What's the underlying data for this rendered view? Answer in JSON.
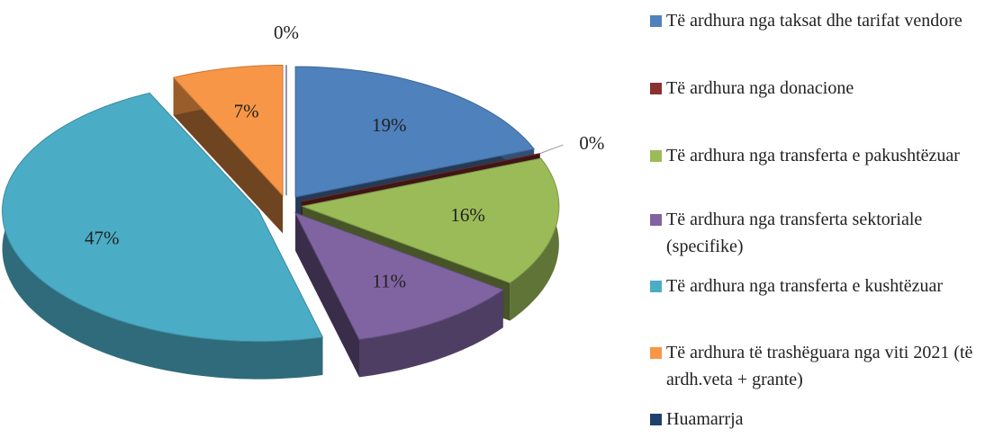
{
  "chart_data": {
    "type": "pie",
    "categories": [
      "Të ardhura nga taksat dhe tarifat vendore",
      "Të ardhura nga donacione",
      "Të ardhura nga transferta e pakushtëzuar",
      "Të ardhura nga transferta sektoriale (specifike)",
      "Të ardhura nga transferta e kushtëzuar",
      "Të ardhura të trashëguara nga viti 2021 (të ardh.veta + grante)",
      "Huamarrja"
    ],
    "values": [
      19,
      0,
      16,
      11,
      47,
      7,
      0
    ],
    "value_labels": [
      "19%",
      "0%",
      "16%",
      "11%",
      "47%",
      "7%",
      "0%"
    ],
    "colors": [
      "#4f81bd",
      "#8b3030",
      "#9bbb59",
      "#8064a2",
      "#4bacc6",
      "#f79646",
      "#1f3f6e"
    ],
    "legend": "right"
  }
}
